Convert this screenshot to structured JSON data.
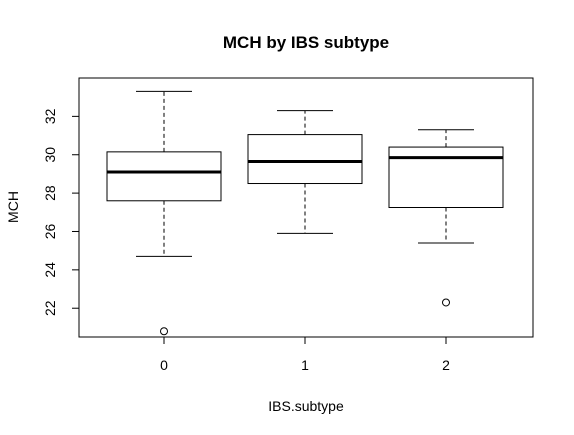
{
  "chart_data": {
    "type": "box",
    "title": "MCH by IBS subtype",
    "xlabel": "IBS.subtype",
    "ylabel": "MCH",
    "categories": [
      "0",
      "1",
      "2"
    ],
    "yticks": [
      22,
      24,
      26,
      28,
      30,
      32
    ],
    "ylim": [
      20.5,
      34.0
    ],
    "grid": false,
    "boxes": [
      {
        "category": "0",
        "whisker_low": 24.7,
        "q1": 27.6,
        "median": 29.1,
        "q3": 30.15,
        "whisker_high": 33.3,
        "outliers": [
          20.8
        ]
      },
      {
        "category": "1",
        "whisker_low": 25.9,
        "q1": 28.5,
        "median": 29.65,
        "q3": 31.05,
        "whisker_high": 32.3,
        "outliers": []
      },
      {
        "category": "2",
        "whisker_low": 25.4,
        "q1": 27.25,
        "median": 29.85,
        "q3": 30.4,
        "whisker_high": 31.3,
        "outliers": [
          22.3
        ]
      }
    ]
  }
}
